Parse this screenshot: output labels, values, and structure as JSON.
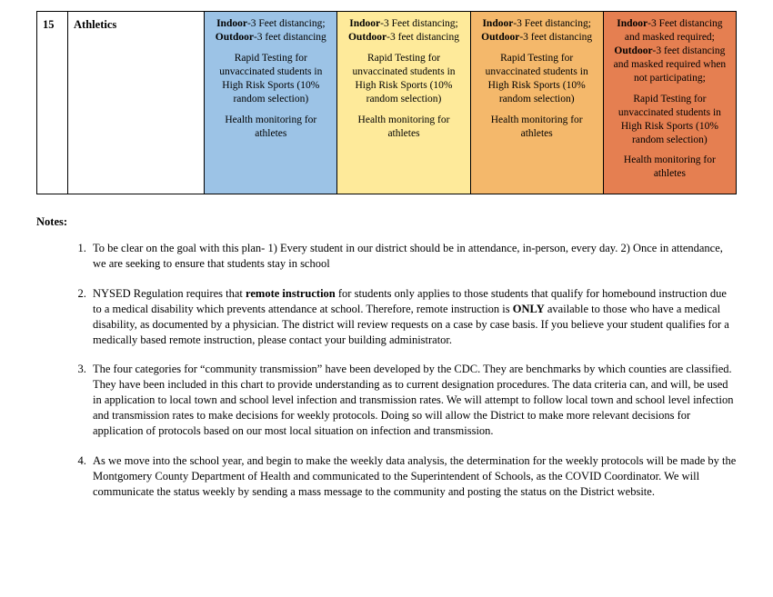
{
  "table": {
    "row_number": "15",
    "row_category": "Athletics",
    "columns": [
      {
        "bg": "#9cc3e6",
        "lines": [
          {
            "pre_bold": "Indoor",
            "rest": "-3 Feet distancing;"
          },
          {
            "pre_bold": "Outdoor",
            "rest": "-3 feet distancing"
          }
        ],
        "body1": "Rapid Testing for unvaccinated students in High Risk Sports (10% random selection)",
        "body2": "Health monitoring for athletes",
        "body3": ""
      },
      {
        "bg": "#feea9a",
        "lines": [
          {
            "pre_bold": "Indoor",
            "rest": "-3 Feet distancing;"
          },
          {
            "pre_bold": "Outdoor",
            "rest": "-3 feet distancing"
          }
        ],
        "body1": "Rapid Testing for unvaccinated students in High Risk Sports (10% random selection)",
        "body2": "Health monitoring for athletes",
        "body3": ""
      },
      {
        "bg": "#f4b86b",
        "lines": [
          {
            "pre_bold": "Indoor",
            "rest": "-3 Feet distancing;"
          },
          {
            "pre_bold": "Outdoor",
            "rest": "-3 feet distancing"
          }
        ],
        "body1": "Rapid Testing for unvaccinated students in High Risk Sports (10% random selection)",
        "body2": "Health monitoring for athletes",
        "body3": ""
      },
      {
        "bg": "#e57f51",
        "lines": [
          {
            "pre_bold": "Indoor",
            "rest": "-3 Feet distancing and masked required;"
          },
          {
            "pre_bold": "Outdoor",
            "rest": "-3 feet distancing and masked required when not participating;"
          }
        ],
        "body1": "Rapid Testing for unvaccinated students in High Risk Sports (10% random selection)",
        "body2": "Health monitoring for athletes",
        "body3": ""
      }
    ]
  },
  "notes_label": "Notes:",
  "notes": [
    {
      "html": "To be clear on the goal with this plan- 1) Every student in our district should be in attendance, in-person, every day. 2) Once in attendance, we are seeking to ensure that students stay in school"
    },
    {
      "html": "NYSED Regulation requires that <b>remote instruction</b> for students only applies to those students that qualify for homebound instruction due to a medical disability which prevents attendance at school.  Therefore, remote instruction is <b>ONLY</b> available to those who have a medical disability, as documented by a physician.  The district will review requests on a case by case basis. If you believe your student qualifies for a medically based remote instruction, please contact your building administrator."
    },
    {
      "html": "The four categories for “community transmission” have been developed by the CDC. They are benchmarks by which counties are classified. They have been included in this chart to provide understanding as to current designation procedures. The data criteria can, and will, be used in application to local town and school level infection and transmission rates. We will attempt to follow local town and school level infection and transmission rates to make decisions for weekly protocols. Doing so will allow the District to make more relevant decisions for application of protocols based on our most local situation on infection and transmission."
    },
    {
      "html": "As we move into the school year, and begin to make the weekly data analysis, the determination for the weekly protocols will be made by the Montgomery County Department of Health and communicated to the Superintendent of Schools, as the COVID Coordinator. We will communicate the status weekly by sending a mass message to the community and posting the status on the District website."
    }
  ]
}
